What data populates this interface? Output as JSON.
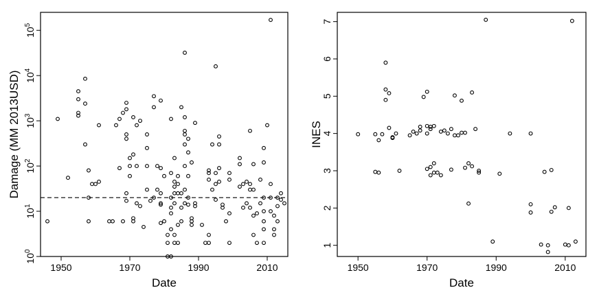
{
  "chart_data": [
    {
      "type": "scatter",
      "title": "",
      "xlabel": "Date",
      "ylabel": "Damage (MM 2013USD)",
      "xlim": [
        1944,
        2016
      ],
      "ylim": [
        1,
        250000
      ],
      "y_scale": "log",
      "x_ticks": [
        "1950",
        "1970",
        "1990",
        "2010"
      ],
      "y_ticks": [
        {
          "base": "10",
          "exp": "0"
        },
        {
          "base": "10",
          "exp": "1"
        },
        {
          "base": "10",
          "exp": "2"
        },
        {
          "base": "10",
          "exp": "3"
        },
        {
          "base": "10",
          "exp": "4"
        },
        {
          "base": "10",
          "exp": "5"
        }
      ],
      "reference_line": {
        "y": 20,
        "style": "dashed"
      },
      "grid": false,
      "legend": "none",
      "points": [
        [
          1946,
          6
        ],
        [
          1949,
          1100
        ],
        [
          1952,
          55
        ],
        [
          1955,
          4500
        ],
        [
          1955,
          3000
        ],
        [
          1955,
          1500
        ],
        [
          1955,
          1300
        ],
        [
          1957,
          8500
        ],
        [
          1957,
          2400
        ],
        [
          1957,
          300
        ],
        [
          1958,
          80
        ],
        [
          1958,
          20
        ],
        [
          1958,
          6
        ],
        [
          1959,
          40
        ],
        [
          1960,
          40
        ],
        [
          1961,
          45
        ],
        [
          1961,
          800
        ],
        [
          1964,
          6
        ],
        [
          1965,
          6
        ],
        [
          1966,
          800
        ],
        [
          1967,
          1100
        ],
        [
          1967,
          90
        ],
        [
          1968,
          1500
        ],
        [
          1968,
          6
        ],
        [
          1969,
          2500
        ],
        [
          1969,
          1800
        ],
        [
          1969,
          500
        ],
        [
          1969,
          400
        ],
        [
          1969,
          25
        ],
        [
          1969,
          17
        ],
        [
          1970,
          100
        ],
        [
          1970,
          150
        ],
        [
          1970,
          60
        ],
        [
          1971,
          1200
        ],
        [
          1971,
          180
        ],
        [
          1971,
          7
        ],
        [
          1971,
          6
        ],
        [
          1972,
          800
        ],
        [
          1972,
          100
        ],
        [
          1972,
          15
        ],
        [
          1973,
          1000
        ],
        [
          1973,
          13
        ],
        [
          1974,
          4.5
        ],
        [
          1975,
          500
        ],
        [
          1975,
          250
        ],
        [
          1975,
          100
        ],
        [
          1975,
          30
        ],
        [
          1976,
          17
        ],
        [
          1977,
          3500
        ],
        [
          1977,
          2000
        ],
        [
          1977,
          20
        ],
        [
          1978,
          100
        ],
        [
          1978,
          30
        ],
        [
          1979,
          2800
        ],
        [
          1979,
          90
        ],
        [
          1979,
          25
        ],
        [
          1979,
          15
        ],
        [
          1979,
          14
        ],
        [
          1979,
          5.5
        ],
        [
          1980,
          60
        ],
        [
          1980,
          6
        ],
        [
          1981,
          3
        ],
        [
          1981,
          2
        ],
        [
          1981,
          1
        ],
        [
          1982,
          1
        ],
        [
          1982,
          1100
        ],
        [
          1982,
          70
        ],
        [
          1982,
          20
        ],
        [
          1982,
          12
        ],
        [
          1982,
          9
        ],
        [
          1982,
          4
        ],
        [
          1983,
          150
        ],
        [
          1983,
          45
        ],
        [
          1983,
          35
        ],
        [
          1983,
          25
        ],
        [
          1983,
          15
        ],
        [
          1983,
          3
        ],
        [
          1983,
          2
        ],
        [
          1984,
          60
        ],
        [
          1984,
          40
        ],
        [
          1984,
          25
        ],
        [
          1984,
          5
        ],
        [
          1984,
          2
        ],
        [
          1985,
          2000
        ],
        [
          1985,
          25
        ],
        [
          1985,
          12
        ],
        [
          1985,
          6
        ],
        [
          1986,
          32000
        ],
        [
          1986,
          1200
        ],
        [
          1986,
          600
        ],
        [
          1986,
          500
        ],
        [
          1986,
          300
        ],
        [
          1986,
          100
        ],
        [
          1986,
          30
        ],
        [
          1986,
          15
        ],
        [
          1987,
          400
        ],
        [
          1987,
          200
        ],
        [
          1987,
          60
        ],
        [
          1987,
          20
        ],
        [
          1987,
          14
        ],
        [
          1988,
          120
        ],
        [
          1988,
          7
        ],
        [
          1988,
          6
        ],
        [
          1988,
          5
        ],
        [
          1989,
          900
        ],
        [
          1989,
          15
        ],
        [
          1989,
          13
        ],
        [
          1991,
          5
        ],
        [
          1992,
          2
        ],
        [
          1993,
          2
        ],
        [
          1993,
          3
        ],
        [
          1993,
          80
        ],
        [
          1993,
          70
        ],
        [
          1993,
          50
        ],
        [
          1994,
          300
        ],
        [
          1994,
          30
        ],
        [
          1995,
          16000
        ],
        [
          1995,
          70
        ],
        [
          1995,
          40
        ],
        [
          1995,
          18
        ],
        [
          1996,
          450
        ],
        [
          1996,
          300
        ],
        [
          1996,
          90
        ],
        [
          1996,
          45
        ],
        [
          1997,
          14
        ],
        [
          1997,
          12
        ],
        [
          1998,
          6
        ],
        [
          1999,
          70
        ],
        [
          1999,
          50
        ],
        [
          1999,
          9
        ],
        [
          1999,
          2
        ],
        [
          2002,
          150
        ],
        [
          2002,
          110
        ],
        [
          2002,
          35
        ],
        [
          2003,
          12
        ],
        [
          2003,
          40
        ],
        [
          2004,
          45
        ],
        [
          2004,
          15
        ],
        [
          2005,
          600
        ],
        [
          2005,
          40
        ],
        [
          2005,
          30
        ],
        [
          2005,
          12
        ],
        [
          2006,
          110
        ],
        [
          2006,
          30
        ],
        [
          2006,
          8
        ],
        [
          2006,
          3
        ],
        [
          2007,
          2
        ],
        [
          2007,
          9
        ],
        [
          2008,
          50
        ],
        [
          2008,
          15
        ],
        [
          2009,
          250
        ],
        [
          2009,
          120
        ],
        [
          2009,
          20
        ],
        [
          2009,
          10
        ],
        [
          2009,
          6
        ],
        [
          2009,
          4
        ],
        [
          2009,
          2
        ],
        [
          2010,
          800
        ],
        [
          2011,
          170000
        ],
        [
          2011,
          40
        ],
        [
          2011,
          20
        ],
        [
          2011,
          10
        ],
        [
          2012,
          8
        ],
        [
          2012,
          4
        ],
        [
          2012,
          3
        ],
        [
          2013,
          6
        ],
        [
          2013,
          20
        ],
        [
          2013,
          13
        ],
        [
          2014,
          25
        ],
        [
          2014,
          18
        ],
        [
          2015,
          15
        ]
      ]
    },
    {
      "type": "scatter",
      "title": "",
      "xlabel": "Date",
      "ylabel": "INES",
      "xlim": [
        1944,
        2016
      ],
      "ylim": [
        0.7,
        7.25
      ],
      "x_ticks": [
        "1950",
        "1970",
        "1990",
        "2010"
      ],
      "y_ticks": [
        "1",
        "2",
        "3",
        "4",
        "5",
        "6",
        "7"
      ],
      "grid": false,
      "legend": "none",
      "points": [
        [
          1950,
          3.98
        ],
        [
          1955,
          3.98
        ],
        [
          1955,
          2.97
        ],
        [
          1956,
          2.95
        ],
        [
          1956,
          3.82
        ],
        [
          1957,
          3.98
        ],
        [
          1958,
          5.9
        ],
        [
          1958,
          5.18
        ],
        [
          1958,
          4.9
        ],
        [
          1959,
          5.08
        ],
        [
          1959,
          4.15
        ],
        [
          1960,
          3.9
        ],
        [
          1960,
          3.88
        ],
        [
          1961,
          4.0
        ],
        [
          1962,
          3.0
        ],
        [
          1965,
          3.95
        ],
        [
          1966,
          4.05
        ],
        [
          1967,
          4.0
        ],
        [
          1968,
          4.18
        ],
        [
          1968,
          4.08
        ],
        [
          1969,
          4.98
        ],
        [
          1970,
          5.12
        ],
        [
          1970,
          4.2
        ],
        [
          1970,
          4.0
        ],
        [
          1970,
          3.05
        ],
        [
          1971,
          4.18
        ],
        [
          1971,
          4.12
        ],
        [
          1971,
          3.1
        ],
        [
          1971,
          2.88
        ],
        [
          1972,
          4.2
        ],
        [
          1972,
          3.2
        ],
        [
          1972,
          2.95
        ],
        [
          1973,
          2.95
        ],
        [
          1974,
          4.05
        ],
        [
          1974,
          2.88
        ],
        [
          1975,
          4.08
        ],
        [
          1976,
          4.0
        ],
        [
          1977,
          4.12
        ],
        [
          1977,
          3.03
        ],
        [
          1978,
          5.02
        ],
        [
          1978,
          3.95
        ],
        [
          1979,
          3.95
        ],
        [
          1980,
          4.88
        ],
        [
          1980,
          4.02
        ],
        [
          1981,
          4.02
        ],
        [
          1981,
          3.08
        ],
        [
          1982,
          3.2
        ],
        [
          1982,
          2.12
        ],
        [
          1983,
          3.12
        ],
        [
          1983,
          5.1
        ],
        [
          1984,
          4.12
        ],
        [
          1985,
          2.95
        ],
        [
          1985,
          3.0
        ],
        [
          1987,
          7.05
        ],
        [
          1989,
          1.1
        ],
        [
          1991,
          2.92
        ],
        [
          1994,
          4.0
        ],
        [
          2000,
          4.0
        ],
        [
          2000,
          2.1
        ],
        [
          2000,
          1.88
        ],
        [
          2003,
          1.02
        ],
        [
          2004,
          2.97
        ],
        [
          2005,
          1.0
        ],
        [
          2005,
          0.82
        ],
        [
          2006,
          3.02
        ],
        [
          2006,
          1.9
        ],
        [
          2007,
          2.02
        ],
        [
          2010,
          1.02
        ],
        [
          2011,
          2.0
        ],
        [
          2011,
          1.0
        ],
        [
          2012,
          7.02
        ],
        [
          2013,
          1.1
        ]
      ]
    }
  ]
}
